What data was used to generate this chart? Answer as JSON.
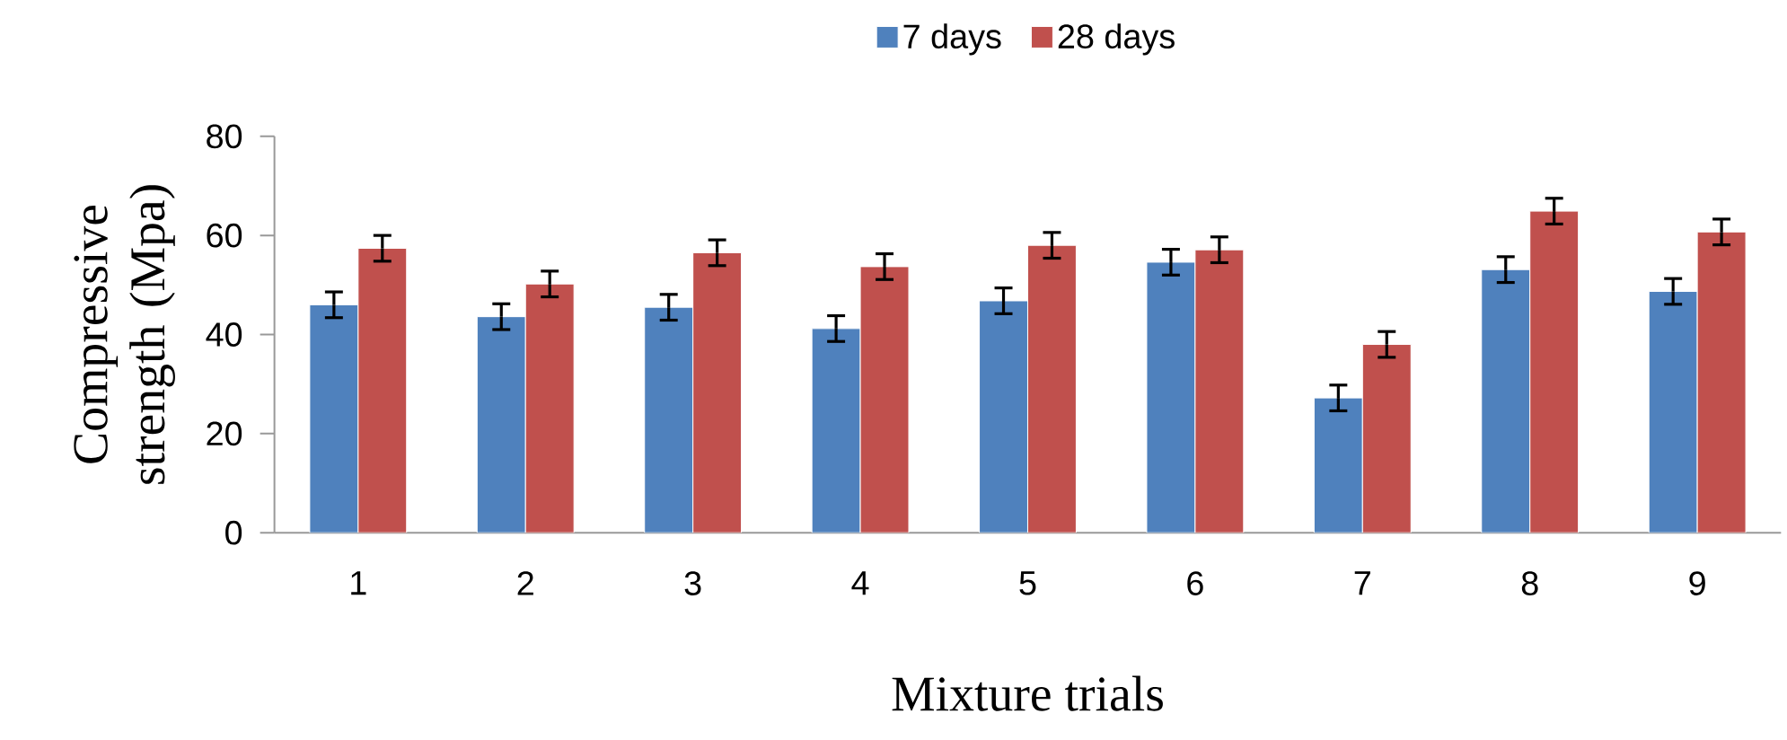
{
  "chart_data": {
    "type": "bar",
    "xlabel": "Mixture trials",
    "ylabel": "Compressive strength (Mpa)",
    "categories": [
      "1",
      "2",
      "3",
      "4",
      "5",
      "6",
      "7",
      "8",
      "9"
    ],
    "series": [
      {
        "name": "7 days",
        "color": "#4f81bd",
        "values": [
          46.0,
          43.6,
          45.5,
          41.2,
          46.8,
          54.6,
          27.2,
          53.1,
          48.7
        ],
        "errors": [
          2.6,
          2.6,
          2.6,
          2.6,
          2.6,
          2.6,
          2.6,
          2.6,
          2.6
        ]
      },
      {
        "name": "28 days",
        "color": "#c0504d",
        "values": [
          57.4,
          50.2,
          56.5,
          53.7,
          58.0,
          57.1,
          38.0,
          64.9,
          60.7
        ],
        "errors": [
          2.6,
          2.6,
          2.6,
          2.6,
          2.6,
          2.6,
          2.6,
          2.6,
          2.6
        ]
      }
    ],
    "ylim": [
      0,
      80
    ],
    "yticks": [
      0,
      20,
      40,
      60,
      80
    ],
    "legend": "top"
  }
}
